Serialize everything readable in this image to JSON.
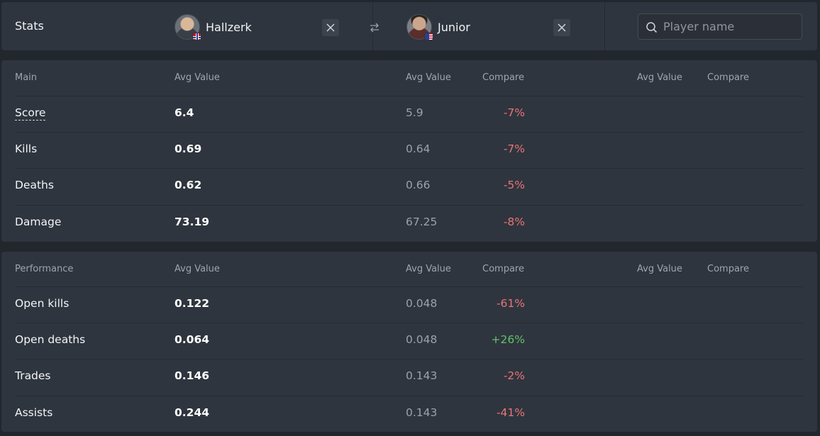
{
  "header": {
    "title": "Stats",
    "player1": {
      "name": "Hallzerk",
      "flag": "Norway"
    },
    "player2": {
      "name": "Junior",
      "flag": "United States"
    },
    "search": {
      "placeholder": "Player name",
      "value": ""
    }
  },
  "colors": {
    "negative": "#e87575",
    "positive": "#61c46a"
  },
  "tables": [
    {
      "section": "Main",
      "columns": {
        "avg1": "Avg Value",
        "avg2": "Avg Value",
        "compare2": "Compare",
        "avg3": "Avg Value",
        "compare3": "Compare"
      },
      "rows": [
        {
          "label": "Score",
          "v1": "6.4",
          "v2": "5.9",
          "compare": "-7%",
          "trend": "negative"
        },
        {
          "label": "Kills",
          "v1": "0.69",
          "v2": "0.64",
          "compare": "-7%",
          "trend": "negative"
        },
        {
          "label": "Deaths",
          "v1": "0.62",
          "v2": "0.66",
          "compare": "-5%",
          "trend": "negative"
        },
        {
          "label": "Damage",
          "v1": "73.19",
          "v2": "67.25",
          "compare": "-8%",
          "trend": "negative"
        }
      ]
    },
    {
      "section": "Performance",
      "columns": {
        "avg1": "Avg Value",
        "avg2": "Avg Value",
        "compare2": "Compare",
        "avg3": "Avg Value",
        "compare3": "Compare"
      },
      "rows": [
        {
          "label": "Open kills",
          "v1": "0.122",
          "v2": "0.048",
          "compare": "-61%",
          "trend": "negative"
        },
        {
          "label": "Open deaths",
          "v1": "0.064",
          "v2": "0.048",
          "compare": "+26%",
          "trend": "positive"
        },
        {
          "label": "Trades",
          "v1": "0.146",
          "v2": "0.143",
          "compare": "-2%",
          "trend": "negative"
        },
        {
          "label": "Assists",
          "v1": "0.244",
          "v2": "0.143",
          "compare": "-41%",
          "trend": "negative"
        }
      ]
    }
  ]
}
